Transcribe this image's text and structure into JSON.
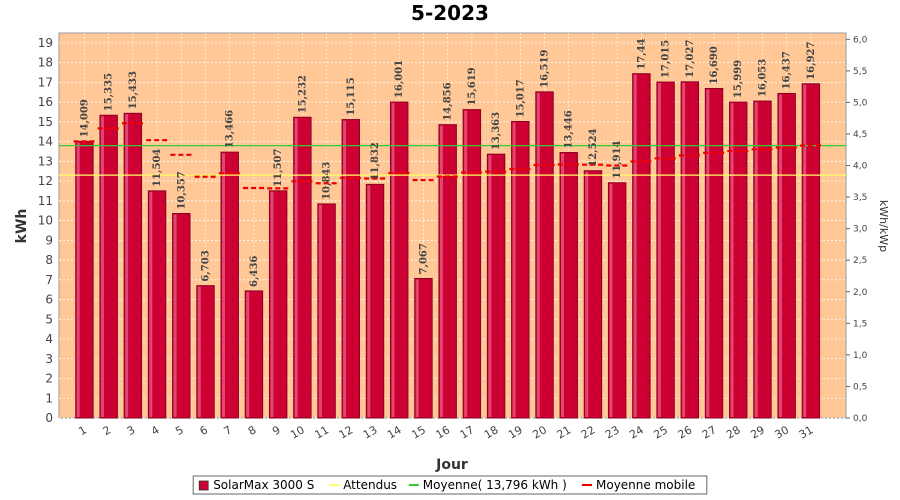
{
  "chart_data": {
    "type": "bar",
    "title": "5-2023",
    "xlabel": "Jour",
    "ylabel": "kWh",
    "y2label": "kWh/kWp",
    "categories": [
      "1",
      "2",
      "3",
      "4",
      "5",
      "6",
      "7",
      "8",
      "9",
      "10",
      "11",
      "12",
      "13",
      "14",
      "15",
      "16",
      "17",
      "18",
      "19",
      "20",
      "21",
      "22",
      "23",
      "24",
      "25",
      "26",
      "27",
      "28",
      "29",
      "30",
      "31"
    ],
    "ylim": [
      0,
      19.5
    ],
    "yticks": [
      "0",
      "1",
      "2",
      "3",
      "4",
      "5",
      "6",
      "7",
      "8",
      "9",
      "10",
      "11",
      "12",
      "13",
      "14",
      "15",
      "16",
      "17",
      "18",
      "19"
    ],
    "y2lim": [
      0,
      6.1
    ],
    "y2ticks": [
      "0,0",
      "0,5",
      "1,0",
      "1,5",
      "2,0",
      "2,5",
      "3,0",
      "3,5",
      "4,0",
      "4,5",
      "5,0",
      "5,5",
      "6,0"
    ],
    "series": [
      {
        "name": "SolarMax 3000 S",
        "kind": "bar",
        "color": "#cc0033",
        "values": [
          14.009,
          15.335,
          15.433,
          11.504,
          10.357,
          6.703,
          13.466,
          6.436,
          11.507,
          15.232,
          10.843,
          15.115,
          11.832,
          16.001,
          7.067,
          14.856,
          15.619,
          13.363,
          15.017,
          16.519,
          13.446,
          12.524,
          11.914,
          17.44,
          17.015,
          17.027,
          16.69,
          15.999,
          16.053,
          16.437,
          16.927
        ],
        "labels": [
          "14,009",
          "15,335",
          "15,433",
          "11,504",
          "10,357",
          "6,703",
          "13,466",
          "6,436",
          "11,507",
          "15,232",
          "10,843",
          "15,115",
          "11,832",
          "16,001",
          "7,067",
          "14,856",
          "15,619",
          "13,363",
          "15,017",
          "16,519",
          "13,446",
          "12,524",
          "11,914",
          "17,44",
          "17,015",
          "17,027",
          "16,690",
          "15,999",
          "16,053",
          "16,437",
          "16,927"
        ]
      },
      {
        "name": "Attendus",
        "kind": "hline",
        "color": "#ffff66",
        "value": 12.3
      },
      {
        "name": "Moyenne( 13,796 kWh )",
        "kind": "hline",
        "color": "#33cc33",
        "value": 13.796
      },
      {
        "name": "Moyenne mobile",
        "kind": "step",
        "color": "#ee0000",
        "values": [
          14.009,
          14.67,
          14.93,
          14.07,
          13.33,
          12.22,
          12.4,
          11.65,
          11.63,
          11.99,
          11.89,
          12.16,
          12.13,
          12.41,
          12.05,
          12.23,
          12.43,
          12.48,
          12.61,
          12.81,
          12.84,
          12.83,
          12.79,
          12.99,
          13.15,
          13.3,
          13.43,
          13.52,
          13.61,
          13.7,
          13.8
        ]
      }
    ],
    "legend_position": "bottom",
    "grid": true
  }
}
